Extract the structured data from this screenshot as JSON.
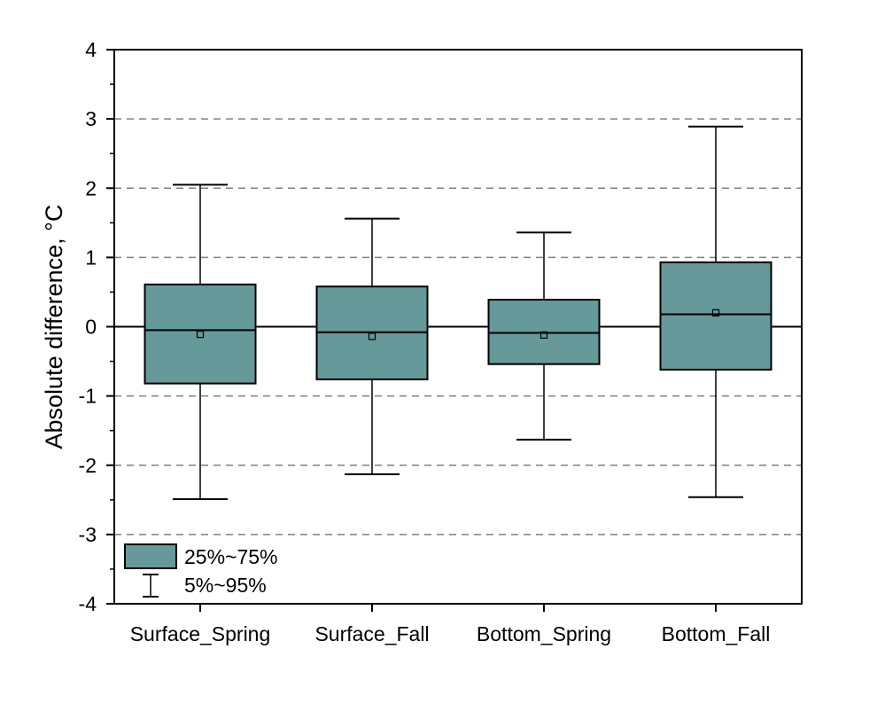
{
  "chart_data": {
    "type": "box",
    "categories": [
      "Surface_Spring",
      "Surface_Fall",
      "Bottom_Spring",
      "Bottom_Fall"
    ],
    "boxes": [
      {
        "category": "Surface_Spring",
        "p5": -2.49,
        "q1": -0.82,
        "median": -0.05,
        "q3": 0.61,
        "p95": 2.05,
        "mean": -0.11
      },
      {
        "category": "Surface_Fall",
        "p5": -2.13,
        "q1": -0.76,
        "median": -0.08,
        "q3": 0.58,
        "p95": 1.56,
        "mean": -0.14
      },
      {
        "category": "Bottom_Spring",
        "p5": -1.63,
        "q1": -0.54,
        "median": -0.09,
        "q3": 0.39,
        "p95": 1.36,
        "mean": -0.12
      },
      {
        "category": "Bottom_Fall",
        "p5": -2.46,
        "q1": -0.62,
        "median": 0.18,
        "q3": 0.93,
        "p95": 2.89,
        "mean": 0.2
      }
    ],
    "title": "",
    "xlabel": "",
    "ylabel": "Absolute difference, °C",
    "ylim": [
      -4,
      4
    ],
    "yticks": [
      -4,
      -3,
      -2,
      -1,
      0,
      1,
      2,
      3,
      4
    ],
    "ytick_labels": [
      "-4",
      "-3",
      "-2",
      "-1",
      "0",
      "1",
      "2",
      "3",
      "4"
    ],
    "gridlines": {
      "dashed_at": [
        -3,
        -2,
        -1,
        1,
        2,
        3
      ],
      "solid_at": [
        0
      ]
    },
    "legend": {
      "placement": "bottom-left",
      "entries": [
        {
          "label": "25%~75%",
          "symbol": "box"
        },
        {
          "label": "5%~95%",
          "symbol": "whisker"
        }
      ]
    },
    "colors": {
      "box_fill": "#669999",
      "line": "#000000",
      "grid": "#808080"
    }
  }
}
